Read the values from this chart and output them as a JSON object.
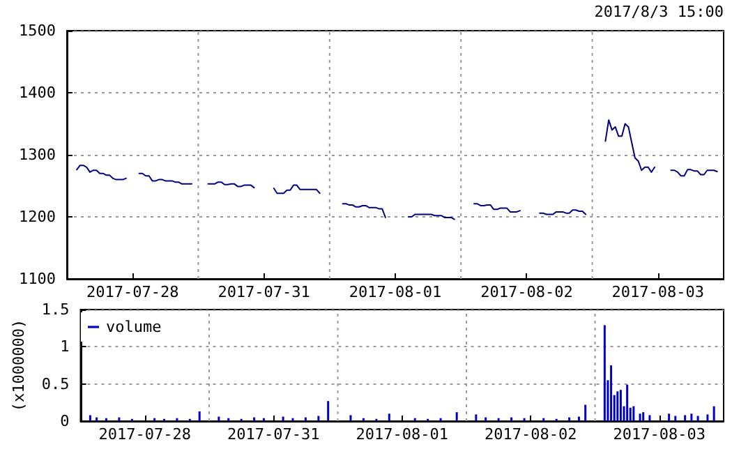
{
  "chart_data": [
    {
      "type": "line",
      "annotations": [
        "2017/8/3 15:00"
      ],
      "categories": [
        null,
        null,
        null,
        null,
        null,
        null,
        null,
        null,
        null,
        null,
        null,
        null,
        null,
        null,
        null,
        null,
        null,
        null,
        null,
        null,
        "2017-07-28",
        null,
        null,
        null,
        null,
        null,
        null,
        null,
        null,
        null,
        null,
        null,
        null,
        null,
        null,
        null,
        null,
        null,
        null,
        null,
        null,
        null,
        null,
        null,
        null,
        null,
        null,
        null,
        null,
        null,
        null,
        null,
        null,
        null,
        null,
        null,
        null,
        null,
        null,
        null,
        "2017-07-31",
        null,
        null,
        null,
        null,
        null,
        null,
        null,
        null,
        null,
        null,
        null,
        null,
        null,
        null,
        null,
        null,
        null,
        null,
        null,
        null,
        null,
        null,
        null,
        null,
        null,
        null,
        null,
        null,
        null,
        null,
        null,
        null,
        null,
        null,
        null,
        null,
        null,
        null,
        null,
        "2017-08-01",
        null,
        null,
        null,
        null,
        null,
        null,
        null,
        null,
        null,
        null,
        null,
        null,
        null,
        null,
        null,
        null,
        null,
        null,
        null,
        null,
        null,
        null,
        null,
        null,
        null,
        null,
        null,
        null,
        null,
        null,
        null,
        null,
        null,
        null,
        null,
        null,
        null,
        null,
        null,
        "2017-08-02",
        null,
        null,
        null,
        null,
        null,
        null,
        null,
        null,
        null,
        null,
        null,
        null,
        null,
        null,
        null,
        null,
        null,
        null,
        null,
        null,
        null,
        null,
        null,
        null,
        null,
        null,
        null,
        null,
        null,
        null,
        null,
        null,
        null,
        null,
        null,
        null,
        null,
        null,
        null,
        "2017-08-03",
        null,
        null,
        null,
        null,
        null,
        null,
        null,
        null,
        null,
        null,
        null,
        null,
        null,
        null,
        null,
        null,
        null,
        null,
        null,
        null
      ],
      "ylim": [
        1100,
        1500
      ],
      "yticks": [
        1100,
        1200,
        1300,
        1400,
        1500
      ],
      "grid": true,
      "legend": false,
      "marker": "none",
      "line_style": "solid",
      "series": [
        {
          "color": "#000080",
          "values": [
            null,
            null,
            null,
            1276,
            1283,
            1283,
            1280,
            1272,
            1275,
            1275,
            1270,
            1270,
            1267,
            1267,
            1262,
            1260,
            1260,
            1260,
            1262,
            null,
            null,
            null,
            1270,
            1270,
            1266,
            1266,
            1258,
            1258,
            1260,
            1260,
            1258,
            1258,
            1258,
            1256,
            1256,
            1253,
            1253,
            1253,
            1253,
            null,
            null,
            null,
            null,
            1253,
            1253,
            1253,
            1256,
            1256,
            1252,
            1252,
            1253,
            1253,
            1249,
            1249,
            1251,
            1251,
            1251,
            1247,
            null,
            null,
            null,
            null,
            null,
            1246,
            1238,
            1238,
            1238,
            1243,
            1243,
            1251,
            1251,
            1244,
            1244,
            1244,
            1244,
            1244,
            1244,
            1238,
            null,
            null,
            null,
            null,
            null,
            null,
            1221,
            1221,
            1219,
            1219,
            1216,
            1216,
            1218,
            1218,
            1215,
            1215,
            1215,
            1213,
            1213,
            1199,
            null,
            null,
            null,
            null,
            null,
            null,
            1200,
            1200,
            1204,
            1204,
            1204,
            1204,
            1204,
            1204,
            1202,
            1202,
            1202,
            1199,
            1199,
            1199,
            1196,
            null,
            null,
            null,
            null,
            null,
            1221,
            1221,
            1218,
            1218,
            1219,
            1219,
            1212,
            1212,
            1214,
            1214,
            1214,
            1208,
            1208,
            1208,
            1210,
            null,
            null,
            null,
            null,
            null,
            1206,
            1206,
            1204,
            1204,
            1204,
            1208,
            1208,
            1208,
            1206,
            1206,
            1211,
            1211,
            1209,
            1209,
            1204,
            null,
            null,
            null,
            null,
            null,
            1322,
            1356,
            1340,
            1345,
            1330,
            1330,
            1350,
            1345,
            1320,
            1295,
            1290,
            1275,
            1280,
            1280,
            1272,
            1280,
            null,
            null,
            null,
            null,
            1275,
            1275,
            1272,
            1266,
            1266,
            1276,
            1276,
            1274,
            1274,
            1268,
            1268,
            1275,
            1275,
            1275,
            1273,
            null,
            null
          ]
        }
      ]
    },
    {
      "type": "bar",
      "ylabel": "(x1000000)",
      "categories": [
        null,
        null,
        null,
        null,
        null,
        null,
        null,
        null,
        null,
        null,
        null,
        null,
        null,
        null,
        null,
        null,
        null,
        null,
        null,
        null,
        "2017-07-28",
        null,
        null,
        null,
        null,
        null,
        null,
        null,
        null,
        null,
        null,
        null,
        null,
        null,
        null,
        null,
        null,
        null,
        null,
        null,
        null,
        null,
        null,
        null,
        null,
        null,
        null,
        null,
        null,
        null,
        null,
        null,
        null,
        null,
        null,
        null,
        null,
        null,
        null,
        null,
        "2017-07-31",
        null,
        null,
        null,
        null,
        null,
        null,
        null,
        null,
        null,
        null,
        null,
        null,
        null,
        null,
        null,
        null,
        null,
        null,
        null,
        null,
        null,
        null,
        null,
        null,
        null,
        null,
        null,
        null,
        null,
        null,
        null,
        null,
        null,
        null,
        null,
        null,
        null,
        null,
        null,
        "2017-08-01",
        null,
        null,
        null,
        null,
        null,
        null,
        null,
        null,
        null,
        null,
        null,
        null,
        null,
        null,
        null,
        null,
        null,
        null,
        null,
        null,
        null,
        null,
        null,
        null,
        null,
        null,
        null,
        null,
        null,
        null,
        null,
        null,
        null,
        null,
        null,
        null,
        null,
        null,
        null,
        "2017-08-02",
        null,
        null,
        null,
        null,
        null,
        null,
        null,
        null,
        null,
        null,
        null,
        null,
        null,
        null,
        null,
        null,
        null,
        null,
        null,
        null,
        null,
        null,
        null,
        null,
        null,
        null,
        null,
        null,
        null,
        null,
        null,
        null,
        null,
        null,
        null,
        null,
        null,
        null,
        null,
        "2017-08-03",
        null,
        null,
        null,
        null,
        null,
        null,
        null,
        null,
        null,
        null,
        null,
        null,
        null,
        null,
        null,
        null,
        null,
        null,
        null,
        null
      ],
      "ylim": [
        0,
        1.5
      ],
      "yticks": [
        0,
        0.5,
        1,
        1.5
      ],
      "grid": true,
      "legend": "top left",
      "series": [
        {
          "name": "volume",
          "color": "#0000cc",
          "values": [
            null,
            null,
            null,
            0.08,
            null,
            0.05,
            null,
            null,
            0.04,
            null,
            null,
            null,
            0.05,
            null,
            null,
            null,
            0.03,
            null,
            null,
            null,
            null,
            null,
            null,
            0.04,
            null,
            null,
            0.03,
            null,
            null,
            null,
            0.04,
            null,
            null,
            null,
            0.03,
            null,
            null,
            0.13,
            null,
            null,
            null,
            null,
            null,
            0.06,
            null,
            null,
            0.04,
            null,
            null,
            null,
            0.03,
            null,
            null,
            null,
            0.05,
            null,
            null,
            0.04,
            null,
            null,
            null,
            null,
            null,
            0.06,
            null,
            null,
            0.04,
            null,
            null,
            null,
            0.05,
            null,
            null,
            null,
            0.07,
            null,
            null,
            0.27,
            null,
            null,
            null,
            null,
            null,
            null,
            0.08,
            null,
            null,
            null,
            0.04,
            null,
            null,
            null,
            0.03,
            null,
            null,
            null,
            0.1,
            null,
            null,
            null,
            null,
            null,
            null,
            null,
            0.04,
            null,
            null,
            null,
            0.03,
            null,
            null,
            null,
            0.04,
            null,
            null,
            null,
            null,
            0.12,
            null,
            null,
            null,
            null,
            null,
            0.09,
            null,
            null,
            0.05,
            null,
            null,
            null,
            0.04,
            null,
            null,
            null,
            0.05,
            null,
            null,
            null,
            0.04,
            null,
            null,
            null,
            null,
            null,
            0.04,
            null,
            null,
            null,
            0.03,
            null,
            null,
            null,
            0.05,
            null,
            null,
            0.06,
            null,
            0.22,
            null,
            null,
            null,
            null,
            null,
            1.29,
            0.55,
            0.75,
            0.35,
            0.4,
            0.42,
            0.2,
            0.49,
            0.18,
            0.2,
            null,
            0.1,
            0.12,
            null,
            0.08,
            null,
            null,
            null,
            null,
            null,
            0.1,
            null,
            0.07,
            null,
            null,
            0.08,
            null,
            0.1,
            null,
            0.07,
            null,
            null,
            0.09,
            null,
            0.2,
            null,
            null,
            null
          ]
        }
      ]
    }
  ]
}
